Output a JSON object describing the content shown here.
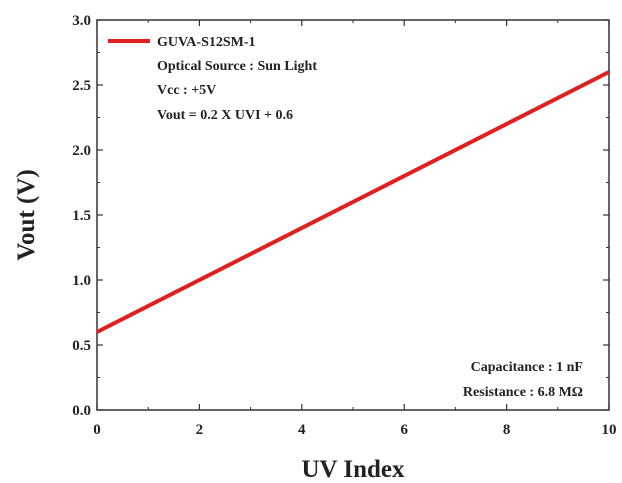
{
  "chart_data": {
    "type": "line",
    "xlabel": "UV Index",
    "ylabel": "Vout (V)",
    "xlim": [
      0,
      10
    ],
    "ylim": [
      0.0,
      3.0
    ],
    "x_ticks": [
      "0",
      "2",
      "4",
      "6",
      "8",
      "10"
    ],
    "y_ticks": [
      "0.0",
      "0.5",
      "1.0",
      "1.5",
      "2.0",
      "2.5",
      "3.0"
    ],
    "grid": false,
    "legend_position": "top-left",
    "series": [
      {
        "name": "GUVA-S12SM-1",
        "color": "#e02020",
        "x": [
          0,
          10
        ],
        "y": [
          0.6,
          2.6
        ]
      }
    ],
    "annotations_top": [
      "Optical Source : Sun Light",
      "Vcc : +5V",
      "Vout = 0.2 X UVI + 0.6"
    ],
    "annotations_bottom": [
      "Capacitance : 1 nF",
      "Resistance : 6.8 MΩ"
    ]
  }
}
